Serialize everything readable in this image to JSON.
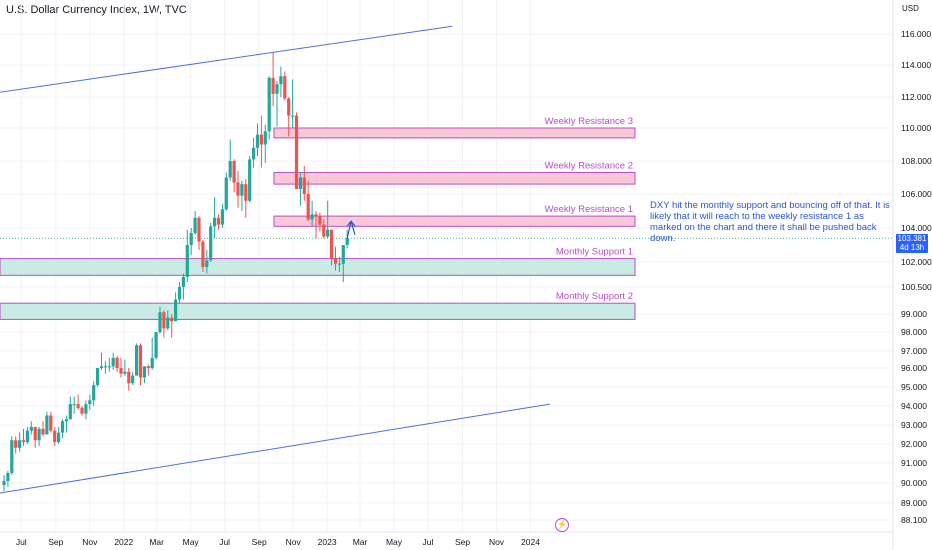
{
  "header": {
    "title": "U.S. Dollar Currency Index, 1W, TVC",
    "currency": "USD"
  },
  "colors": {
    "up": "#26a69a",
    "down": "#ef5350",
    "resistance_fill": "#f8c8d6",
    "support_fill": "#c8ebe4",
    "zone_border": "#b94ec6",
    "label": "#b94ec6",
    "channel": "#4a72d8",
    "note": "#2a56d8",
    "badge": "#2962ff"
  },
  "price_badge": {
    "price": "103.381",
    "countdown": "4d 13h"
  },
  "bolt_icon": "lightning-icon",
  "annotation": "DXY hit the monthly support and bouncing off of that. It is likely that it will reach to the weekly resistance 1 as marked on the chart and there it shall be pushed back down.",
  "chart_data": {
    "type": "candlestick",
    "title": "U.S. Dollar Currency Index, 1W, TVC",
    "y_axis": {
      "unit": "USD",
      "ticks": [
        88.1,
        89.0,
        90.0,
        91.0,
        92.0,
        93.0,
        94.0,
        95.0,
        96.0,
        97.0,
        98.0,
        99.0,
        100.5,
        102.0,
        104.0,
        106.0,
        108.0,
        110.0,
        112.0,
        114.0,
        116.0
      ],
      "tick_labels": [
        "88.100",
        "89.000",
        "90.000",
        "91.000",
        "92.000",
        "93.000",
        "94.000",
        "95.000",
        "96.000",
        "97.000",
        "98.000",
        "99.000",
        "100.500",
        "102.000",
        "104.000",
        "106.000",
        "108.000",
        "110.000",
        "112.000",
        "114.000",
        "116.000"
      ]
    },
    "x_axis": {
      "ticks": [
        "Jul",
        "Sep",
        "Nov",
        "2022",
        "Mar",
        "May",
        "Jul",
        "Sep",
        "Nov",
        "2023",
        "Mar",
        "May",
        "Jul",
        "Sep",
        "Nov",
        "2024"
      ]
    },
    "zones": [
      {
        "name": "Weekly Resistance 3",
        "type": "resistance",
        "low": 109.4,
        "high": 110.0
      },
      {
        "name": "Weekly Resistance 2",
        "type": "resistance",
        "low": 106.6,
        "high": 107.3
      },
      {
        "name": "Weekly Resistance 1",
        "type": "resistance",
        "low": 104.1,
        "high": 104.7
      },
      {
        "name": "Monthly Support 1",
        "type": "support",
        "low": 101.2,
        "high": 102.2
      },
      {
        "name": "Monthly Support 2",
        "type": "support",
        "low": 98.7,
        "high": 99.6
      }
    ],
    "channel_lines": [
      {
        "from": [
          "2021-05-31",
          112.3
        ],
        "to": [
          "2023-08-14",
          116.5
        ]
      },
      {
        "from": [
          "2021-05-31",
          89.5
        ],
        "to": [
          "2024-02-05",
          94.1
        ]
      }
    ],
    "candles": [
      {
        "date": "2021-05-31",
        "o": 89.9,
        "h": 90.4,
        "l": 89.6,
        "c": 90.1
      },
      {
        "date": "2021-06-07",
        "o": 90.1,
        "h": 90.6,
        "l": 89.8,
        "c": 90.5
      },
      {
        "date": "2021-06-14",
        "o": 90.5,
        "h": 92.4,
        "l": 90.4,
        "c": 92.2
      },
      {
        "date": "2021-06-21",
        "o": 92.2,
        "h": 92.4,
        "l": 91.5,
        "c": 91.8
      },
      {
        "date": "2021-06-28",
        "o": 91.8,
        "h": 92.6,
        "l": 91.6,
        "c": 92.2
      },
      {
        "date": "2021-07-05",
        "o": 92.2,
        "h": 92.8,
        "l": 91.9,
        "c": 92.1
      },
      {
        "date": "2021-07-12",
        "o": 92.1,
        "h": 92.9,
        "l": 92.0,
        "c": 92.7
      },
      {
        "date": "2021-07-19",
        "o": 92.7,
        "h": 93.2,
        "l": 92.5,
        "c": 92.9
      },
      {
        "date": "2021-07-26",
        "o": 92.9,
        "h": 92.9,
        "l": 91.8,
        "c": 92.2
      },
      {
        "date": "2021-08-02",
        "o": 92.2,
        "h": 92.9,
        "l": 91.9,
        "c": 92.8
      },
      {
        "date": "2021-08-09",
        "o": 92.8,
        "h": 93.2,
        "l": 92.4,
        "c": 92.5
      },
      {
        "date": "2021-08-16",
        "o": 92.5,
        "h": 93.7,
        "l": 92.5,
        "c": 93.5
      },
      {
        "date": "2021-08-23",
        "o": 93.5,
        "h": 93.7,
        "l": 92.6,
        "c": 92.7
      },
      {
        "date": "2021-08-30",
        "o": 92.7,
        "h": 92.9,
        "l": 91.9,
        "c": 92.1
      },
      {
        "date": "2021-09-06",
        "o": 92.1,
        "h": 92.9,
        "l": 92.0,
        "c": 92.6
      },
      {
        "date": "2021-09-13",
        "o": 92.6,
        "h": 93.3,
        "l": 92.3,
        "c": 93.2
      },
      {
        "date": "2021-09-20",
        "o": 93.2,
        "h": 93.5,
        "l": 92.6,
        "c": 93.3
      },
      {
        "date": "2021-09-27",
        "o": 93.3,
        "h": 94.5,
        "l": 93.3,
        "c": 94.1
      },
      {
        "date": "2021-10-04",
        "o": 94.1,
        "h": 94.5,
        "l": 93.6,
        "c": 94.1
      },
      {
        "date": "2021-10-11",
        "o": 94.1,
        "h": 94.6,
        "l": 93.8,
        "c": 93.9
      },
      {
        "date": "2021-10-18",
        "o": 93.9,
        "h": 94.0,
        "l": 93.5,
        "c": 93.6
      },
      {
        "date": "2021-10-25",
        "o": 93.6,
        "h": 94.3,
        "l": 93.3,
        "c": 94.1
      },
      {
        "date": "2021-11-01",
        "o": 94.1,
        "h": 94.6,
        "l": 93.8,
        "c": 94.3
      },
      {
        "date": "2021-11-08",
        "o": 94.3,
        "h": 95.3,
        "l": 94.0,
        "c": 95.1
      },
      {
        "date": "2021-11-15",
        "o": 95.1,
        "h": 96.0,
        "l": 95.0,
        "c": 96.0
      },
      {
        "date": "2021-11-22",
        "o": 96.0,
        "h": 96.9,
        "l": 95.9,
        "c": 96.1
      },
      {
        "date": "2021-11-29",
        "o": 96.1,
        "h": 96.4,
        "l": 95.7,
        "c": 96.1
      },
      {
        "date": "2021-12-06",
        "o": 96.1,
        "h": 96.6,
        "l": 95.8,
        "c": 96.1
      },
      {
        "date": "2021-12-13",
        "o": 96.1,
        "h": 96.9,
        "l": 95.9,
        "c": 96.6
      },
      {
        "date": "2021-12-20",
        "o": 96.6,
        "h": 96.7,
        "l": 95.8,
        "c": 96.0
      },
      {
        "date": "2021-12-27",
        "o": 96.0,
        "h": 96.6,
        "l": 95.5,
        "c": 95.7
      },
      {
        "date": "2022-01-03",
        "o": 95.7,
        "h": 96.5,
        "l": 95.6,
        "c": 95.8
      },
      {
        "date": "2022-01-10",
        "o": 95.8,
        "h": 96.0,
        "l": 94.8,
        "c": 95.2
      },
      {
        "date": "2022-01-17",
        "o": 95.2,
        "h": 95.8,
        "l": 95.1,
        "c": 95.6
      },
      {
        "date": "2022-01-24",
        "o": 95.6,
        "h": 97.4,
        "l": 95.6,
        "c": 97.3
      },
      {
        "date": "2022-01-31",
        "o": 97.3,
        "h": 97.4,
        "l": 95.1,
        "c": 95.5
      },
      {
        "date": "2022-02-07",
        "o": 95.5,
        "h": 96.1,
        "l": 95.2,
        "c": 96.1
      },
      {
        "date": "2022-02-14",
        "o": 96.1,
        "h": 96.2,
        "l": 95.6,
        "c": 96.0
      },
      {
        "date": "2022-02-21",
        "o": 96.0,
        "h": 97.7,
        "l": 95.9,
        "c": 96.6
      },
      {
        "date": "2022-02-28",
        "o": 96.6,
        "h": 98.0,
        "l": 96.5,
        "c": 98.0
      },
      {
        "date": "2022-03-07",
        "o": 98.0,
        "h": 99.4,
        "l": 97.9,
        "c": 99.1
      },
      {
        "date": "2022-03-14",
        "o": 99.1,
        "h": 99.2,
        "l": 97.7,
        "c": 98.2
      },
      {
        "date": "2022-03-21",
        "o": 98.2,
        "h": 99.2,
        "l": 98.1,
        "c": 98.8
      },
      {
        "date": "2022-03-28",
        "o": 98.8,
        "h": 99.0,
        "l": 97.7,
        "c": 98.6
      },
      {
        "date": "2022-04-04",
        "o": 98.6,
        "h": 100.2,
        "l": 98.6,
        "c": 99.8
      },
      {
        "date": "2022-04-11",
        "o": 99.8,
        "h": 100.8,
        "l": 99.6,
        "c": 100.5
      },
      {
        "date": "2022-04-18",
        "o": 100.5,
        "h": 101.3,
        "l": 99.8,
        "c": 101.1
      },
      {
        "date": "2022-04-25",
        "o": 101.1,
        "h": 103.9,
        "l": 100.8,
        "c": 103.0
      },
      {
        "date": "2022-05-02",
        "o": 103.0,
        "h": 104.0,
        "l": 102.4,
        "c": 103.7
      },
      {
        "date": "2022-05-09",
        "o": 103.7,
        "h": 105.0,
        "l": 103.6,
        "c": 104.6
      },
      {
        "date": "2022-05-16",
        "o": 104.6,
        "h": 104.7,
        "l": 102.7,
        "c": 103.2
      },
      {
        "date": "2022-05-23",
        "o": 103.2,
        "h": 103.3,
        "l": 101.4,
        "c": 101.7
      },
      {
        "date": "2022-05-30",
        "o": 101.7,
        "h": 102.7,
        "l": 101.3,
        "c": 102.1
      },
      {
        "date": "2022-06-06",
        "o": 102.1,
        "h": 104.3,
        "l": 102.0,
        "c": 104.1
      },
      {
        "date": "2022-06-13",
        "o": 104.1,
        "h": 105.8,
        "l": 103.4,
        "c": 104.6
      },
      {
        "date": "2022-06-20",
        "o": 104.6,
        "h": 104.8,
        "l": 103.9,
        "c": 104.2
      },
      {
        "date": "2022-06-27",
        "o": 104.2,
        "h": 105.4,
        "l": 104.0,
        "c": 105.1
      },
      {
        "date": "2022-07-04",
        "o": 105.1,
        "h": 107.3,
        "l": 105.0,
        "c": 107.0
      },
      {
        "date": "2022-07-11",
        "o": 107.0,
        "h": 109.3,
        "l": 106.8,
        "c": 108.0
      },
      {
        "date": "2022-07-18",
        "o": 108.0,
        "h": 108.1,
        "l": 106.1,
        "c": 106.7
      },
      {
        "date": "2022-07-25",
        "o": 106.7,
        "h": 107.4,
        "l": 105.2,
        "c": 105.9
      },
      {
        "date": "2022-08-01",
        "o": 105.9,
        "h": 106.8,
        "l": 105.0,
        "c": 106.6
      },
      {
        "date": "2022-08-08",
        "o": 106.6,
        "h": 106.9,
        "l": 104.6,
        "c": 105.6
      },
      {
        "date": "2022-08-15",
        "o": 105.6,
        "h": 108.3,
        "l": 105.5,
        "c": 108.1
      },
      {
        "date": "2022-08-22",
        "o": 108.1,
        "h": 109.4,
        "l": 107.6,
        "c": 108.8
      },
      {
        "date": "2022-08-29",
        "o": 108.8,
        "h": 110.3,
        "l": 108.3,
        "c": 109.6
      },
      {
        "date": "2022-09-05",
        "o": 109.6,
        "h": 110.8,
        "l": 107.6,
        "c": 109.0
      },
      {
        "date": "2022-09-12",
        "o": 109.0,
        "h": 110.2,
        "l": 107.9,
        "c": 109.8
      },
      {
        "date": "2022-09-19",
        "o": 109.8,
        "h": 113.3,
        "l": 109.3,
        "c": 113.2
      },
      {
        "date": "2022-09-26",
        "o": 113.2,
        "h": 114.8,
        "l": 111.4,
        "c": 112.2
      },
      {
        "date": "2022-10-03",
        "o": 112.2,
        "h": 113.0,
        "l": 110.1,
        "c": 112.8
      },
      {
        "date": "2022-10-10",
        "o": 112.8,
        "h": 113.9,
        "l": 112.0,
        "c": 113.3
      },
      {
        "date": "2022-10-17",
        "o": 113.3,
        "h": 113.6,
        "l": 111.8,
        "c": 111.9
      },
      {
        "date": "2022-10-24",
        "o": 111.9,
        "h": 112.0,
        "l": 109.5,
        "c": 110.8
      },
      {
        "date": "2022-10-31",
        "o": 110.8,
        "h": 113.1,
        "l": 110.0,
        "c": 110.8
      },
      {
        "date": "2022-11-07",
        "o": 110.8,
        "h": 111.0,
        "l": 106.3,
        "c": 106.3
      },
      {
        "date": "2022-11-14",
        "o": 106.3,
        "h": 107.3,
        "l": 105.3,
        "c": 107.0
      },
      {
        "date": "2022-11-21",
        "o": 107.0,
        "h": 107.7,
        "l": 105.6,
        "c": 106.0
      },
      {
        "date": "2022-11-28",
        "o": 106.0,
        "h": 106.8,
        "l": 104.4,
        "c": 104.5
      },
      {
        "date": "2022-12-05",
        "o": 104.5,
        "h": 105.6,
        "l": 104.1,
        "c": 104.8
      },
      {
        "date": "2022-12-12",
        "o": 104.8,
        "h": 105.0,
        "l": 103.4,
        "c": 104.7
      },
      {
        "date": "2022-12-19",
        "o": 104.7,
        "h": 104.9,
        "l": 103.8,
        "c": 104.2
      },
      {
        "date": "2022-12-26",
        "o": 104.2,
        "h": 104.5,
        "l": 103.4,
        "c": 103.5
      },
      {
        "date": "2023-01-02",
        "o": 103.5,
        "h": 105.6,
        "l": 103.4,
        "c": 103.9
      },
      {
        "date": "2023-01-09",
        "o": 103.9,
        "h": 103.9,
        "l": 101.8,
        "c": 102.2
      },
      {
        "date": "2023-01-16",
        "o": 102.2,
        "h": 102.9,
        "l": 101.5,
        "c": 101.9
      },
      {
        "date": "2023-01-23",
        "o": 101.9,
        "h": 102.3,
        "l": 101.4,
        "c": 101.9
      },
      {
        "date": "2023-01-30",
        "o": 101.9,
        "h": 103.0,
        "l": 100.8,
        "c": 103.0
      },
      {
        "date": "2023-02-06",
        "o": 103.0,
        "h": 103.9,
        "l": 102.8,
        "c": 103.4
      }
    ],
    "forecast_arrow": [
      [
        "2023-02-06",
        103.4
      ],
      [
        "2023-02-13",
        104.4
      ],
      [
        "2023-02-20",
        103.6
      ]
    ]
  }
}
